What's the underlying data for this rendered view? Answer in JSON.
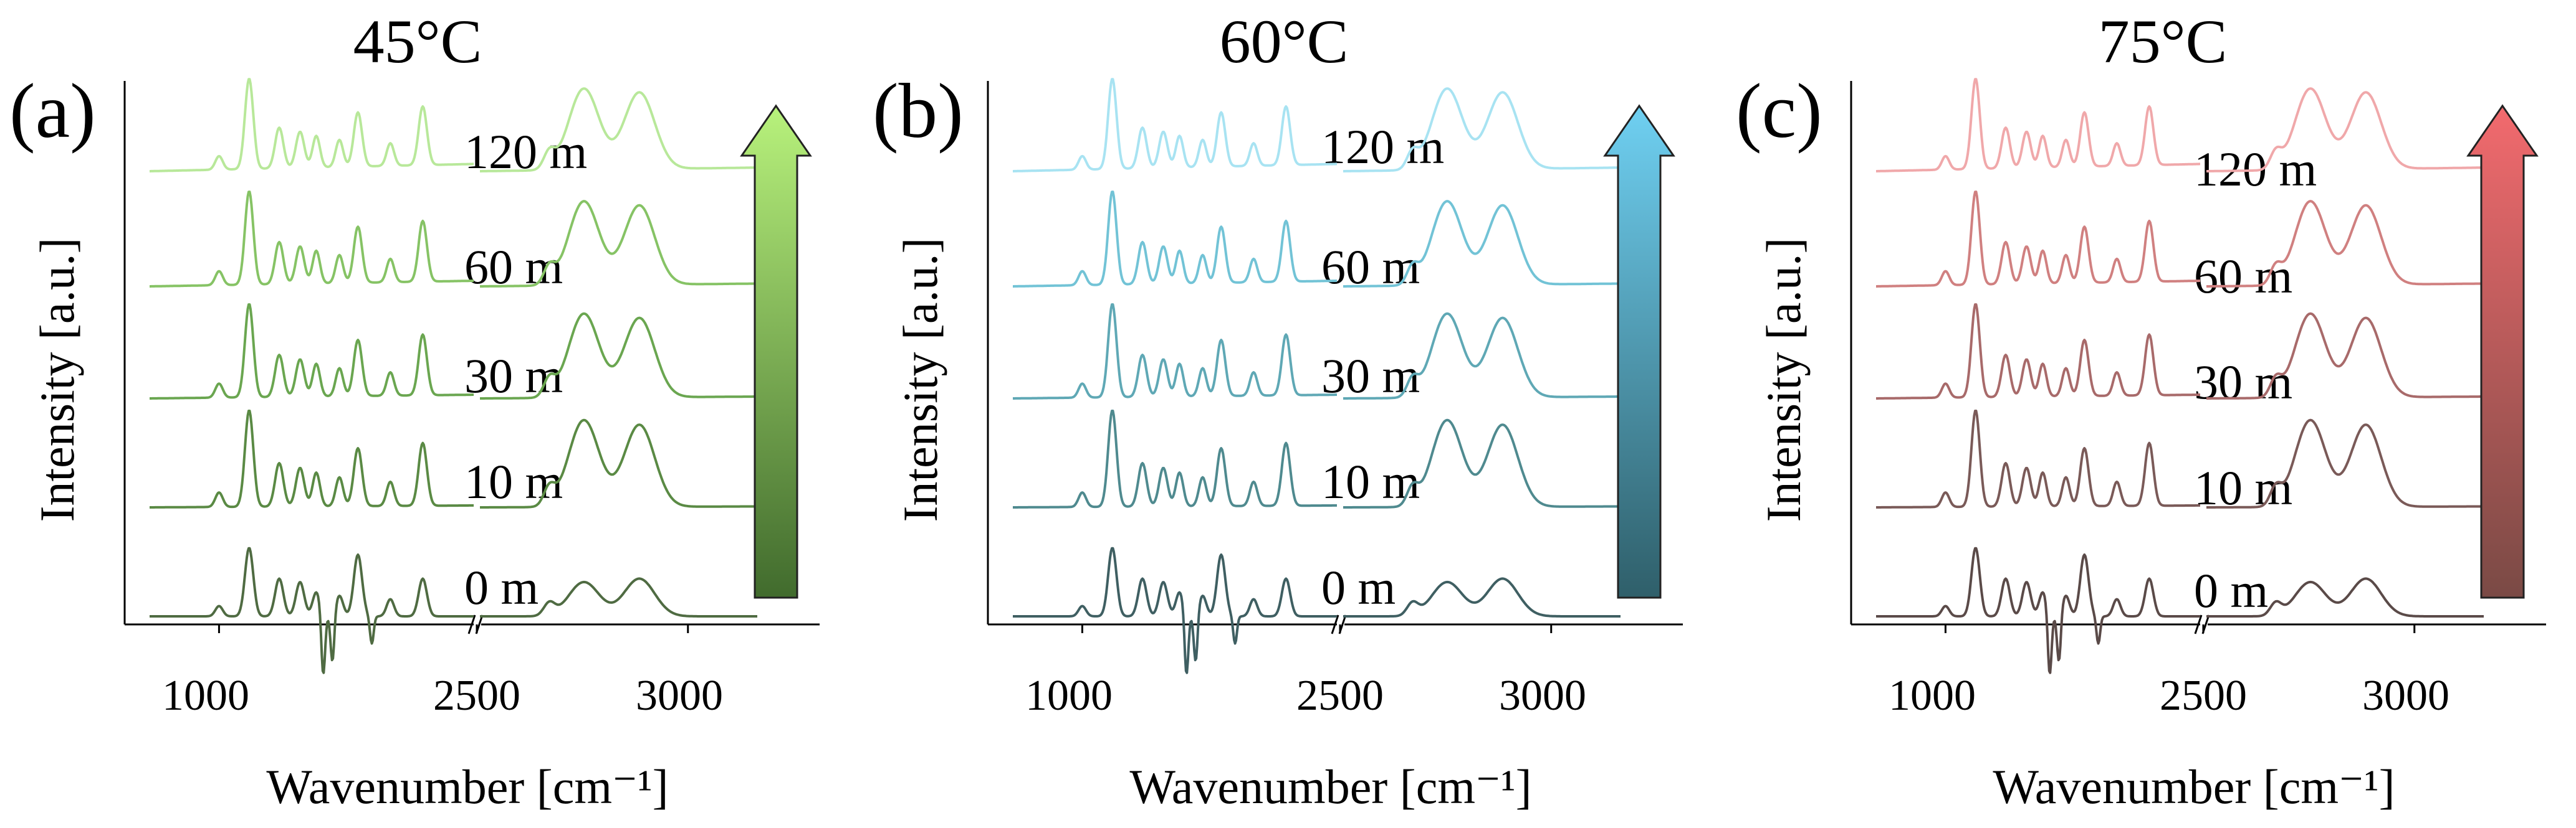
{
  "figure": {
    "panels": [
      {
        "id": "a",
        "letter": "(a)",
        "title": "45°C",
        "ylabel": "Intensity [a.u.]",
        "xlabel": "Wavenumber [cm⁻¹]",
        "xticks": [
          "1000",
          "2500",
          "3000"
        ],
        "time_labels": [
          "0 m",
          "10 m",
          "30 m",
          "60 m",
          "120 m"
        ],
        "arrow_colors": [
          "#416b2d",
          "#b8f27c"
        ],
        "series_colors": [
          "#4f6b42",
          "#5a8a44",
          "#6aa650",
          "#86c365",
          "#b8e89a"
        ]
      },
      {
        "id": "b",
        "letter": "(b)",
        "title": "60°C",
        "ylabel": "Intensity [a.u.]",
        "xlabel": "Wavenumber [cm⁻¹]",
        "xticks": [
          "1000",
          "2500",
          "3000"
        ],
        "time_labels": [
          "0 m",
          "10 m",
          "30 m",
          "60 m",
          "120 m"
        ],
        "arrow_colors": [
          "#2f5f6a",
          "#6fd0f2"
        ],
        "series_colors": [
          "#3f5f62",
          "#4f8a8f",
          "#5fa8b5",
          "#72c3d6",
          "#a8e3f2"
        ]
      },
      {
        "id": "c",
        "letter": "(c)",
        "title": "75°C",
        "ylabel": "Intensity [a.u.]",
        "xlabel": "Wavenumber [cm⁻¹]",
        "xticks": [
          "1000",
          "2500",
          "3000"
        ],
        "time_labels": [
          "0 m",
          "10 m",
          "30 m",
          "60 m",
          "120 m"
        ],
        "arrow_colors": [
          "#7a4a45",
          "#f26a6e"
        ],
        "series_colors": [
          "#5a4a48",
          "#7a5a58",
          "#a86a6a",
          "#d08080",
          "#f0a8aa"
        ]
      }
    ]
  },
  "chart_data": [
    {
      "type": "line",
      "title": "45°C",
      "xlabel": "Wavenumber [cm⁻¹]",
      "ylabel": "Intensity [a.u.]",
      "x_breaks": [
        [
          850,
          1550
        ],
        [
          2700,
          3100
        ]
      ],
      "xticks": [
        1000,
        2500,
        3000
      ],
      "y_ticks_shown": false,
      "series": [
        {
          "name": "0 m",
          "peaks": [
            [
              1065,
              1.0
            ],
            [
              1130,
              0.55
            ],
            [
              1175,
              0.5
            ],
            [
              1300,
              0.9
            ],
            [
              1440,
              0.55
            ],
            [
              2850,
              0.5
            ],
            [
              2930,
              0.55
            ]
          ]
        },
        {
          "name": "10 m",
          "peaks": [
            [
              1065,
              1.0
            ],
            [
              1130,
              0.45
            ],
            [
              1175,
              0.4
            ],
            [
              1300,
              0.6
            ],
            [
              1440,
              0.65
            ],
            [
              2850,
              0.9
            ],
            [
              2930,
              0.85
            ]
          ]
        },
        {
          "name": "30 m",
          "peaks": [
            [
              1065,
              1.0
            ],
            [
              1130,
              0.45
            ],
            [
              1175,
              0.4
            ],
            [
              1300,
              0.6
            ],
            [
              1440,
              0.65
            ],
            [
              2850,
              0.9
            ],
            [
              2930,
              0.85
            ]
          ]
        },
        {
          "name": "60 m",
          "peaks": [
            [
              1065,
              1.0
            ],
            [
              1130,
              0.45
            ],
            [
              1175,
              0.4
            ],
            [
              1300,
              0.6
            ],
            [
              1440,
              0.65
            ],
            [
              2850,
              0.9
            ],
            [
              2930,
              0.85
            ]
          ]
        },
        {
          "name": "120 m",
          "peaks": [
            [
              1065,
              1.0
            ],
            [
              1130,
              0.45
            ],
            [
              1175,
              0.4
            ],
            [
              1300,
              0.6
            ],
            [
              1440,
              0.65
            ],
            [
              2850,
              0.9
            ],
            [
              2930,
              0.85
            ]
          ]
        }
      ]
    },
    {
      "type": "line",
      "title": "60°C",
      "xlabel": "Wavenumber [cm⁻¹]",
      "ylabel": "Intensity [a.u.]",
      "x_breaks": [
        [
          850,
          1550
        ],
        [
          2700,
          3100
        ]
      ],
      "xticks": [
        1000,
        2500,
        3000
      ],
      "y_ticks_shown": false,
      "series": [
        {
          "name": "0 m",
          "peaks": [
            [
              1065,
              1.0
            ],
            [
              1130,
              0.55
            ],
            [
              1175,
              0.5
            ],
            [
              1300,
              0.9
            ],
            [
              1440,
              0.55
            ],
            [
              2850,
              0.5
            ],
            [
              2930,
              0.55
            ]
          ]
        },
        {
          "name": "10 m",
          "peaks": [
            [
              1065,
              1.0
            ],
            [
              1130,
              0.45
            ],
            [
              1175,
              0.4
            ],
            [
              1300,
              0.6
            ],
            [
              1440,
              0.65
            ],
            [
              2850,
              0.9
            ],
            [
              2930,
              0.85
            ]
          ]
        },
        {
          "name": "30 m",
          "peaks": [
            [
              1065,
              1.0
            ],
            [
              1130,
              0.45
            ],
            [
              1175,
              0.4
            ],
            [
              1300,
              0.6
            ],
            [
              1440,
              0.65
            ],
            [
              2850,
              0.9
            ],
            [
              2930,
              0.85
            ]
          ]
        },
        {
          "name": "60 m",
          "peaks": [
            [
              1065,
              1.0
            ],
            [
              1130,
              0.45
            ],
            [
              1175,
              0.4
            ],
            [
              1300,
              0.6
            ],
            [
              1440,
              0.65
            ],
            [
              2850,
              0.9
            ],
            [
              2930,
              0.85
            ]
          ]
        },
        {
          "name": "120 m",
          "peaks": [
            [
              1065,
              1.0
            ],
            [
              1130,
              0.45
            ],
            [
              1175,
              0.4
            ],
            [
              1300,
              0.6
            ],
            [
              1440,
              0.65
            ],
            [
              2850,
              0.9
            ],
            [
              2930,
              0.85
            ]
          ]
        }
      ]
    },
    {
      "type": "line",
      "title": "75°C",
      "xlabel": "Wavenumber [cm⁻¹]",
      "ylabel": "Intensity [a.u.]",
      "x_breaks": [
        [
          850,
          1550
        ],
        [
          2700,
          3100
        ]
      ],
      "xticks": [
        1000,
        2500,
        3000
      ],
      "y_ticks_shown": false,
      "series": [
        {
          "name": "0 m",
          "peaks": [
            [
              1065,
              1.0
            ],
            [
              1130,
              0.55
            ],
            [
              1175,
              0.5
            ],
            [
              1300,
              0.9
            ],
            [
              1440,
              0.55
            ],
            [
              2850,
              0.5
            ],
            [
              2930,
              0.55
            ]
          ]
        },
        {
          "name": "10 m",
          "peaks": [
            [
              1065,
              1.0
            ],
            [
              1130,
              0.45
            ],
            [
              1175,
              0.4
            ],
            [
              1300,
              0.6
            ],
            [
              1440,
              0.65
            ],
            [
              2850,
              0.9
            ],
            [
              2930,
              0.85
            ]
          ]
        },
        {
          "name": "30 m",
          "peaks": [
            [
              1065,
              1.0
            ],
            [
              1130,
              0.45
            ],
            [
              1175,
              0.4
            ],
            [
              1300,
              0.6
            ],
            [
              1440,
              0.65
            ],
            [
              2850,
              0.9
            ],
            [
              2930,
              0.85
            ]
          ]
        },
        {
          "name": "60 m",
          "peaks": [
            [
              1065,
              1.0
            ],
            [
              1130,
              0.45
            ],
            [
              1175,
              0.4
            ],
            [
              1300,
              0.6
            ],
            [
              1440,
              0.65
            ],
            [
              2850,
              0.9
            ],
            [
              2930,
              0.85
            ]
          ]
        },
        {
          "name": "120 m",
          "peaks": [
            [
              1065,
              1.0
            ],
            [
              1130,
              0.45
            ],
            [
              1175,
              0.4
            ],
            [
              1300,
              0.6
            ],
            [
              1440,
              0.65
            ],
            [
              2850,
              0.9
            ],
            [
              2930,
              0.85
            ]
          ]
        }
      ]
    }
  ]
}
